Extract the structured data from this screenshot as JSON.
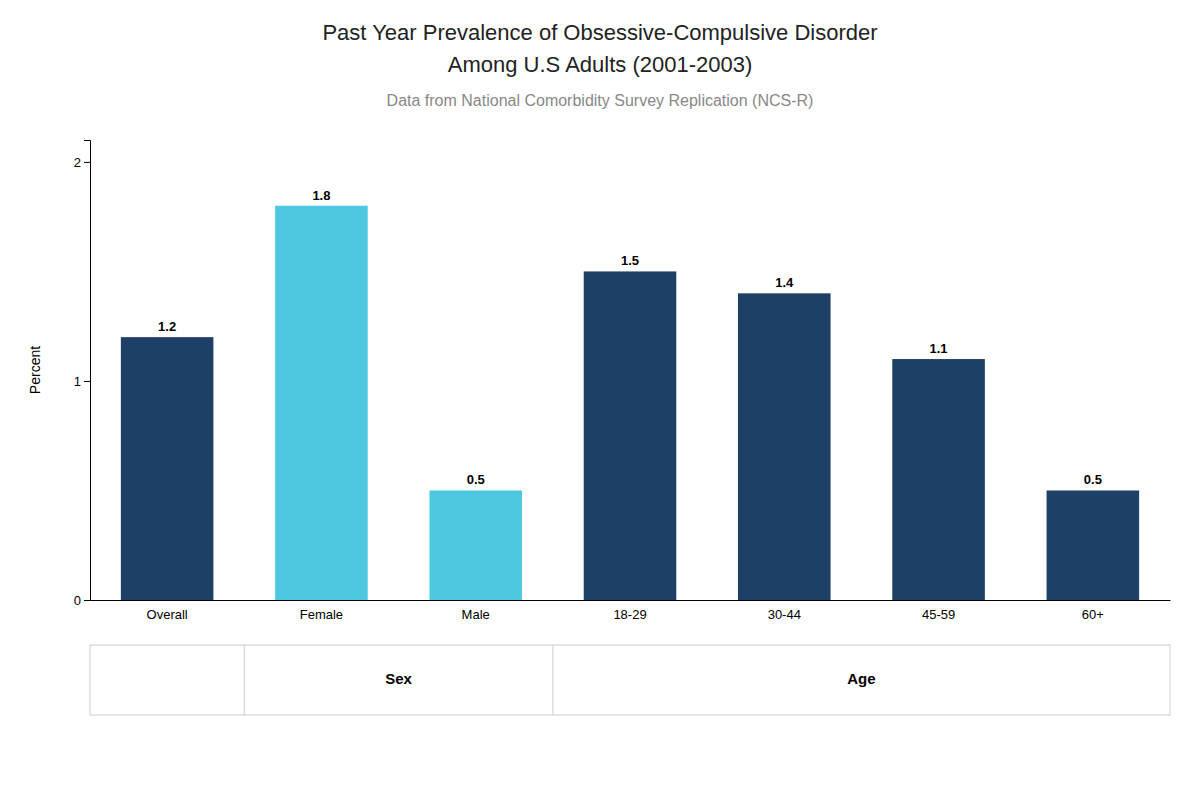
{
  "chart_data": {
    "type": "bar",
    "title": [
      "Past Year Prevalence of Obsessive-Compulsive Disorder",
      "Among U.S Adults (2001-2003)"
    ],
    "subtitle": "Data from National Comorbidity Survey Replication (NCS-R)",
    "categories": [
      "Overall",
      "Female",
      "Male",
      "18-29",
      "30-44",
      "45-59",
      "60+"
    ],
    "values": [
      1.2,
      1.8,
      0.5,
      1.5,
      1.4,
      1.1,
      0.5
    ],
    "colors": [
      "#1e3f66",
      "#4dc8e0",
      "#4dc8e0",
      "#1e3f66",
      "#1e3f66",
      "#1e3f66",
      "#1e3f66"
    ],
    "ylabel": "Percent",
    "ylim": [
      0,
      2.1
    ],
    "yticks": [
      0,
      1,
      2
    ],
    "grid": false,
    "data_labels": true,
    "annotations": [
      {
        "text": "Sex",
        "categories": [
          "Female",
          "Male"
        ]
      },
      {
        "text": "Age",
        "categories": [
          "18-29",
          "30-44",
          "45-59",
          "60+"
        ]
      }
    ]
  }
}
